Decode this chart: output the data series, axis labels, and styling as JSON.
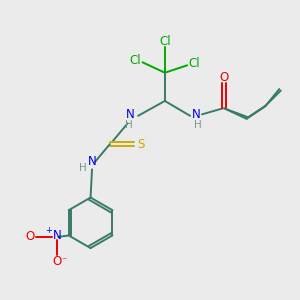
{
  "bg_color": "#ebebeb",
  "atom_colors": {
    "C": "#3a7a6a",
    "H": "#7a9a8a",
    "N": "#0000ee",
    "O": "#ee0000",
    "S": "#ccaa00",
    "Cl": "#00aa00"
  },
  "bond_color": "#3a7a6a"
}
